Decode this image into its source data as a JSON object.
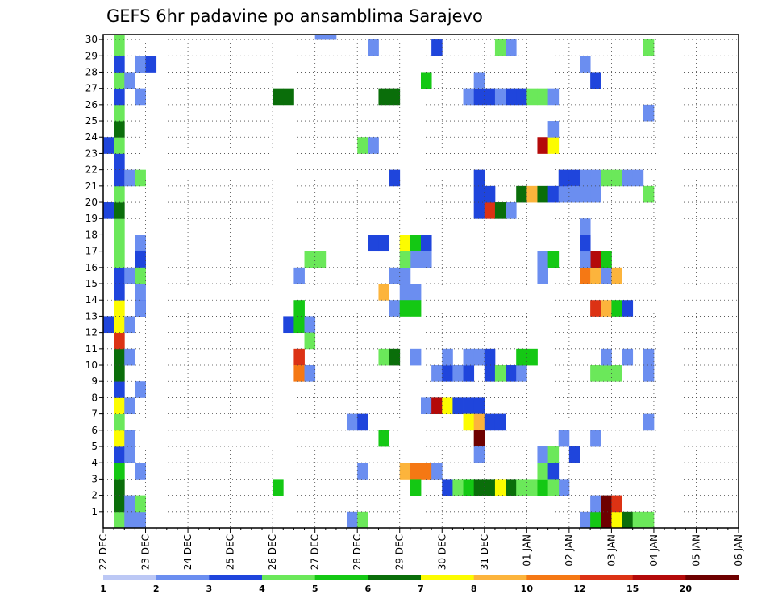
{
  "chart_data": {
    "type": "heatmap",
    "title": "GEFS 6hr padavine po ansamblima Sarajevo",
    "x_tick_labels": [
      "22 DEC",
      "23 DEC",
      "24 DEC",
      "25 DEC",
      "26 DEC",
      "27 DEC",
      "28 DEC",
      "29 DEC",
      "30 DEC",
      "31 DEC",
      "01 JAN",
      "02 JAN",
      "03 JAN",
      "04 JAN",
      "05 JAN",
      "06 JAN"
    ],
    "x_steps_per_day": 4,
    "x_range_steps": [
      0,
      60
    ],
    "y_tick_labels": [
      1,
      2,
      3,
      4,
      5,
      6,
      7,
      8,
      9,
      10,
      11,
      12,
      13,
      14,
      15,
      16,
      17,
      18,
      19,
      20,
      21,
      22,
      23,
      24,
      25,
      26,
      27,
      28,
      29,
      30
    ],
    "y_range": [
      0,
      30
    ],
    "grid": true,
    "legend": {
      "placement": "bottom",
      "thresholds": [
        1,
        2,
        3,
        4,
        5,
        6,
        7,
        8,
        10,
        12,
        15,
        20
      ],
      "labels": [
        "1",
        "2",
        "3",
        "4",
        "5",
        "6",
        "7",
        "8",
        "10",
        "12",
        "15",
        "20"
      ],
      "colors": [
        "#bcc8f5",
        "#6b8ef0",
        "#1f45dc",
        "#6be85a",
        "#14c814",
        "#0a6e0a",
        "#fcfc00",
        "#fcb43c",
        "#f57814",
        "#dc3214",
        "#b40a0a",
        "#6e0000"
      ]
    },
    "cells_format": "[time_step, ensemble_member, color_class]",
    "cells": [
      [
        1,
        0,
        3
      ],
      [
        1,
        1,
        5
      ],
      [
        1,
        2,
        5
      ],
      [
        1,
        3,
        4
      ],
      [
        1,
        4,
        2
      ],
      [
        1,
        5,
        6
      ],
      [
        1,
        6,
        3
      ],
      [
        1,
        7,
        6
      ],
      [
        1,
        8,
        2
      ],
      [
        1,
        9,
        5
      ],
      [
        1,
        10,
        5
      ],
      [
        1,
        11,
        9
      ],
      [
        1,
        12,
        6
      ],
      [
        1,
        13,
        6
      ],
      [
        1,
        14,
        2
      ],
      [
        1,
        15,
        2
      ],
      [
        1,
        16,
        3
      ],
      [
        1,
        17,
        3
      ],
      [
        1,
        18,
        3
      ],
      [
        1,
        19,
        5
      ],
      [
        1,
        20,
        3
      ],
      [
        1,
        21,
        2
      ],
      [
        1,
        22,
        2
      ],
      [
        1,
        23,
        3
      ],
      [
        1,
        24,
        5
      ],
      [
        1,
        25,
        3
      ],
      [
        1,
        26,
        2
      ],
      [
        1,
        27,
        3
      ],
      [
        1,
        28,
        2
      ],
      [
        1,
        29,
        3
      ],
      [
        1,
        30,
        3
      ],
      [
        0,
        19,
        2
      ],
      [
        0,
        23,
        2
      ],
      [
        0,
        12,
        2
      ],
      [
        2,
        0,
        1
      ],
      [
        2,
        1,
        1
      ],
      [
        2,
        4,
        1
      ],
      [
        2,
        5,
        1
      ],
      [
        2,
        7,
        1
      ],
      [
        2,
        10,
        1
      ],
      [
        2,
        12,
        1
      ],
      [
        2,
        15,
        1
      ],
      [
        2,
        21,
        1
      ],
      [
        2,
        27,
        1
      ],
      [
        3,
        28,
        1
      ],
      [
        3,
        28,
        1
      ],
      [
        4,
        28,
        2
      ],
      [
        3,
        26,
        1
      ],
      [
        3,
        21,
        3
      ],
      [
        3,
        17,
        1
      ],
      [
        3,
        16,
        2
      ],
      [
        3,
        15,
        3
      ],
      [
        3,
        14,
        1
      ],
      [
        3,
        13,
        2
      ],
      [
        3,
        0,
        1
      ],
      [
        3,
        1,
        3
      ],
      [
        3,
        3,
        1
      ],
      [
        3,
        8,
        1
      ],
      [
        3,
        13,
        1
      ],
      [
        16,
        2,
        4
      ],
      [
        16,
        26,
        5
      ],
      [
        17,
        26,
        5
      ],
      [
        17,
        12,
        2
      ],
      [
        18,
        12,
        4
      ],
      [
        18,
        13,
        4
      ],
      [
        18,
        10,
        9
      ],
      [
        18,
        9,
        8
      ],
      [
        19,
        12,
        1
      ],
      [
        19,
        11,
        3
      ],
      [
        19,
        9,
        1
      ],
      [
        20,
        30,
        1
      ],
      [
        21,
        30,
        1
      ],
      [
        18,
        15,
        1
      ],
      [
        19,
        16,
        3
      ],
      [
        20,
        16,
        3
      ],
      [
        23,
        0,
        1
      ],
      [
        23,
        6,
        1
      ],
      [
        24,
        6,
        2
      ],
      [
        24,
        0,
        3
      ],
      [
        24,
        3,
        1
      ],
      [
        24,
        23,
        3
      ],
      [
        25,
        23,
        1
      ],
      [
        25,
        29,
        1
      ],
      [
        25,
        17,
        2
      ],
      [
        26,
        17,
        2
      ],
      [
        26,
        5,
        4
      ],
      [
        26,
        14,
        7
      ],
      [
        26,
        10,
        3
      ],
      [
        26,
        26,
        5
      ],
      [
        27,
        26,
        5
      ],
      [
        27,
        10,
        5
      ],
      [
        27,
        15,
        1
      ],
      [
        28,
        15,
        1
      ],
      [
        28,
        14,
        1
      ],
      [
        29,
        14,
        1
      ],
      [
        27,
        13,
        1
      ],
      [
        28,
        13,
        4
      ],
      [
        29,
        13,
        4
      ],
      [
        27,
        21,
        2
      ],
      [
        28,
        3,
        7
      ],
      [
        29,
        3,
        8
      ],
      [
        30,
        3,
        8
      ],
      [
        31,
        3,
        1
      ],
      [
        29,
        2,
        4
      ],
      [
        28,
        17,
        6
      ],
      [
        29,
        17,
        4
      ],
      [
        30,
        17,
        2
      ],
      [
        30,
        16,
        1
      ],
      [
        29,
        16,
        1
      ],
      [
        30,
        27,
        4
      ],
      [
        31,
        29,
        2
      ],
      [
        29,
        10,
        1
      ],
      [
        28,
        16,
        3
      ],
      [
        30,
        7,
        1
      ],
      [
        31,
        7,
        10
      ],
      [
        32,
        7,
        6
      ],
      [
        33,
        7,
        2
      ],
      [
        34,
        7,
        2
      ],
      [
        35,
        7,
        2
      ],
      [
        31,
        9,
        1
      ],
      [
        32,
        9,
        2
      ],
      [
        33,
        9,
        1
      ],
      [
        34,
        9,
        2
      ],
      [
        32,
        2,
        2
      ],
      [
        33,
        2,
        3
      ],
      [
        34,
        2,
        4
      ],
      [
        35,
        2,
        5
      ],
      [
        36,
        2,
        5
      ],
      [
        37,
        2,
        6
      ],
      [
        38,
        2,
        5
      ],
      [
        39,
        2,
        3
      ],
      [
        40,
        2,
        3
      ],
      [
        41,
        2,
        4
      ],
      [
        42,
        2,
        4
      ],
      [
        43,
        2,
        1
      ],
      [
        32,
        10,
        1
      ],
      [
        34,
        10,
        1
      ],
      [
        35,
        10,
        1
      ],
      [
        36,
        10,
        2
      ],
      [
        34,
        6,
        6
      ],
      [
        35,
        6,
        7
      ],
      [
        36,
        6,
        2
      ],
      [
        37,
        6,
        2
      ],
      [
        35,
        5,
        11
      ],
      [
        35,
        4,
        1
      ],
      [
        35,
        19,
        2
      ],
      [
        36,
        19,
        9
      ],
      [
        37,
        19,
        5
      ],
      [
        38,
        19,
        1
      ],
      [
        35,
        20,
        2
      ],
      [
        36,
        20,
        2
      ],
      [
        35,
        21,
        2
      ],
      [
        34,
        26,
        1
      ],
      [
        35,
        26,
        2
      ],
      [
        36,
        26,
        2
      ],
      [
        37,
        26,
        1
      ],
      [
        38,
        26,
        2
      ],
      [
        39,
        26,
        2
      ],
      [
        40,
        26,
        3
      ],
      [
        41,
        26,
        3
      ],
      [
        42,
        26,
        1
      ],
      [
        35,
        27,
        1
      ],
      [
        37,
        29,
        3
      ],
      [
        38,
        29,
        1
      ],
      [
        36,
        9,
        2
      ],
      [
        37,
        9,
        3
      ],
      [
        38,
        9,
        2
      ],
      [
        39,
        9,
        1
      ],
      [
        39,
        10,
        4
      ],
      [
        40,
        10,
        4
      ],
      [
        39,
        20,
        5
      ],
      [
        40,
        20,
        7
      ],
      [
        41,
        20,
        5
      ],
      [
        42,
        20,
        2
      ],
      [
        43,
        20,
        1
      ],
      [
        41,
        23,
        10
      ],
      [
        42,
        23,
        6
      ],
      [
        42,
        24,
        1
      ],
      [
        41,
        16,
        1
      ],
      [
        42,
        16,
        4
      ],
      [
        41,
        15,
        1
      ],
      [
        41,
        4,
        1
      ],
      [
        42,
        4,
        3
      ],
      [
        44,
        4,
        2
      ],
      [
        41,
        3,
        3
      ],
      [
        42,
        3,
        2
      ],
      [
        42,
        2,
        3
      ],
      [
        43,
        5,
        1
      ],
      [
        43,
        21,
        2
      ],
      [
        44,
        21,
        2
      ],
      [
        45,
        21,
        1
      ],
      [
        44,
        20,
        1
      ],
      [
        45,
        20,
        1
      ],
      [
        46,
        20,
        1
      ],
      [
        45,
        28,
        1
      ],
      [
        46,
        27,
        2
      ],
      [
        46,
        21,
        1
      ],
      [
        47,
        21,
        3
      ],
      [
        48,
        21,
        3
      ],
      [
        49,
        21,
        1
      ],
      [
        50,
        21,
        1
      ],
      [
        51,
        20,
        3
      ],
      [
        45,
        0,
        1
      ],
      [
        46,
        0,
        4
      ],
      [
        47,
        0,
        11
      ],
      [
        48,
        0,
        6
      ],
      [
        49,
        0,
        5
      ],
      [
        50,
        0,
        3
      ],
      [
        51,
        0,
        3
      ],
      [
        46,
        1,
        1
      ],
      [
        47,
        1,
        11
      ],
      [
        48,
        1,
        9
      ],
      [
        46,
        5,
        1
      ],
      [
        46,
        9,
        3
      ],
      [
        47,
        9,
        3
      ],
      [
        48,
        9,
        3
      ],
      [
        47,
        10,
        1
      ],
      [
        49,
        10,
        1
      ],
      [
        51,
        10,
        1
      ],
      [
        51,
        9,
        1
      ],
      [
        51,
        6,
        1
      ],
      [
        51,
        29,
        3
      ],
      [
        51,
        25,
        1
      ],
      [
        46,
        13,
        9
      ],
      [
        47,
        13,
        7
      ],
      [
        48,
        13,
        4
      ],
      [
        49,
        13,
        2
      ],
      [
        45,
        15,
        8
      ],
      [
        46,
        15,
        7
      ],
      [
        47,
        15,
        1
      ],
      [
        48,
        15,
        7
      ],
      [
        46,
        16,
        10
      ],
      [
        47,
        16,
        4
      ],
      [
        45,
        16,
        1
      ],
      [
        45,
        17,
        2
      ],
      [
        45,
        18,
        1
      ]
    ]
  }
}
